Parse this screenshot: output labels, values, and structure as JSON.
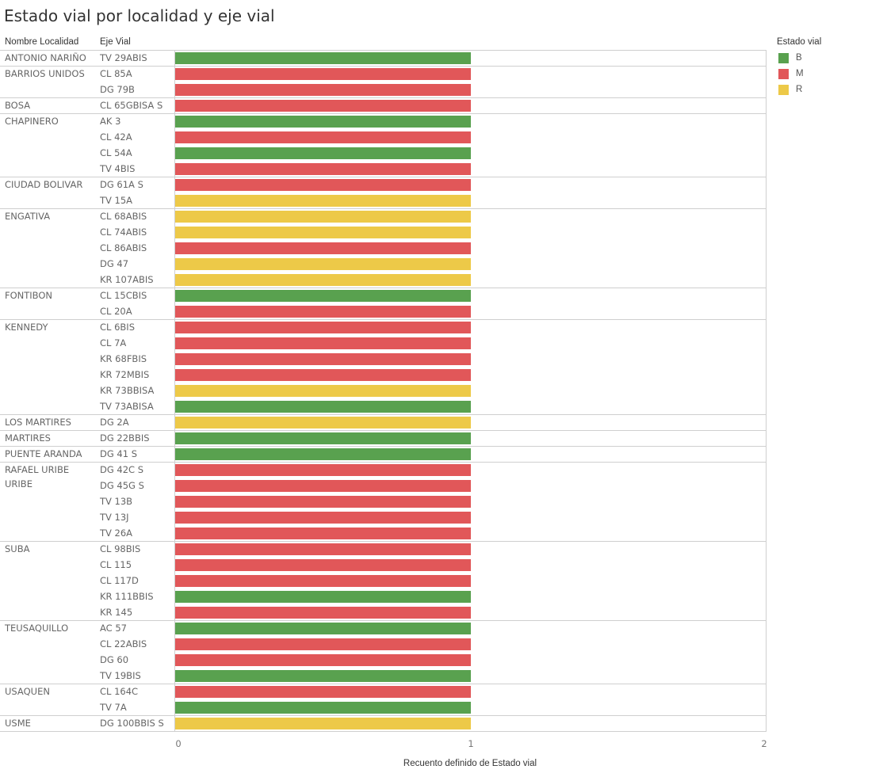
{
  "chart_data": {
    "type": "bar",
    "orientation": "horizontal",
    "title": "Estado vial por localidad y eje vial",
    "row_headers": [
      "Nombre Localidad",
      "Eje Vial"
    ],
    "xlabel": "Recuento definido de Estado vial",
    "xlim": [
      0,
      2
    ],
    "xticks": [
      "0",
      "1",
      "2"
    ],
    "legend": {
      "title": "Estado vial",
      "position": "right",
      "items": [
        {
          "label": "B",
          "color": "#59a14f"
        },
        {
          "label": "M",
          "color": "#e15759"
        },
        {
          "label": "R",
          "color": "#edc948"
        }
      ]
    },
    "groups": [
      {
        "localidad": "ANTONIO NARIÑO",
        "rows": [
          {
            "eje": "TV 29ABIS",
            "estado": "B",
            "value": 1
          }
        ]
      },
      {
        "localidad": "BARRIOS UNIDOS",
        "rows": [
          {
            "eje": "CL 85A",
            "estado": "M",
            "value": 1
          },
          {
            "eje": "DG 79B",
            "estado": "M",
            "value": 1
          }
        ]
      },
      {
        "localidad": "BOSA",
        "rows": [
          {
            "eje": "CL 65GBISA S",
            "estado": "M",
            "value": 1
          }
        ]
      },
      {
        "localidad": "CHAPINERO",
        "rows": [
          {
            "eje": "AK 3",
            "estado": "B",
            "value": 1
          },
          {
            "eje": "CL 42A",
            "estado": "M",
            "value": 1
          },
          {
            "eje": "CL 54A",
            "estado": "B",
            "value": 1
          },
          {
            "eje": "TV 4BIS",
            "estado": "M",
            "value": 1
          }
        ]
      },
      {
        "localidad": "CIUDAD BOLIVAR",
        "rows": [
          {
            "eje": "DG 61A S",
            "estado": "M",
            "value": 1
          },
          {
            "eje": "TV 15A",
            "estado": "R",
            "value": 1
          }
        ]
      },
      {
        "localidad": "ENGATIVA",
        "rows": [
          {
            "eje": "CL 68ABIS",
            "estado": "R",
            "value": 1
          },
          {
            "eje": "CL 74ABIS",
            "estado": "R",
            "value": 1
          },
          {
            "eje": "CL 86ABIS",
            "estado": "M",
            "value": 1
          },
          {
            "eje": "DG 47",
            "estado": "R",
            "value": 1
          },
          {
            "eje": "KR 107ABIS",
            "estado": "R",
            "value": 1
          }
        ]
      },
      {
        "localidad": "FONTIBON",
        "rows": [
          {
            "eje": "CL 15CBIS",
            "estado": "B",
            "value": 1
          },
          {
            "eje": "CL 20A",
            "estado": "M",
            "value": 1
          }
        ]
      },
      {
        "localidad": "KENNEDY",
        "rows": [
          {
            "eje": "CL 6BIS",
            "estado": "M",
            "value": 1
          },
          {
            "eje": "CL 7A",
            "estado": "M",
            "value": 1
          },
          {
            "eje": "KR 68FBIS",
            "estado": "M",
            "value": 1
          },
          {
            "eje": "KR 72MBIS",
            "estado": "M",
            "value": 1
          },
          {
            "eje": "KR 73BBISA",
            "estado": "R",
            "value": 1
          },
          {
            "eje": "TV 73ABISA",
            "estado": "B",
            "value": 1
          }
        ]
      },
      {
        "localidad": "LOS MARTIRES",
        "rows": [
          {
            "eje": "DG 2A",
            "estado": "R",
            "value": 1
          }
        ]
      },
      {
        "localidad": "MARTIRES",
        "rows": [
          {
            "eje": "DG 22BBIS",
            "estado": "B",
            "value": 1
          }
        ]
      },
      {
        "localidad": "PUENTE ARANDA",
        "rows": [
          {
            "eje": "DG 41 S",
            "estado": "B",
            "value": 1
          }
        ]
      },
      {
        "localidad": "RAFAEL URIBE URIBE",
        "localidad_lines": [
          "RAFAEL URIBE",
          "URIBE"
        ],
        "rows": [
          {
            "eje": "DG 42C S",
            "estado": "M",
            "value": 1
          },
          {
            "eje": "DG 45G S",
            "estado": "M",
            "value": 1
          },
          {
            "eje": "TV 13B",
            "estado": "M",
            "value": 1
          },
          {
            "eje": "TV 13J",
            "estado": "M",
            "value": 1
          },
          {
            "eje": "TV 26A",
            "estado": "M",
            "value": 1
          }
        ]
      },
      {
        "localidad": "SUBA",
        "rows": [
          {
            "eje": "CL 98BIS",
            "estado": "M",
            "value": 1
          },
          {
            "eje": "CL 115",
            "estado": "M",
            "value": 1
          },
          {
            "eje": "CL 117D",
            "estado": "M",
            "value": 1
          },
          {
            "eje": "KR 111BBIS",
            "estado": "B",
            "value": 1
          },
          {
            "eje": "KR 145",
            "estado": "M",
            "value": 1
          }
        ]
      },
      {
        "localidad": "TEUSAQUILLO",
        "rows": [
          {
            "eje": "AC 57",
            "estado": "B",
            "value": 1
          },
          {
            "eje": "CL 22ABIS",
            "estado": "M",
            "value": 1
          },
          {
            "eje": "DG 60",
            "estado": "M",
            "value": 1
          },
          {
            "eje": "TV 19BIS",
            "estado": "B",
            "value": 1
          }
        ]
      },
      {
        "localidad": "USAQUEN",
        "rows": [
          {
            "eje": "CL 164C",
            "estado": "M",
            "value": 1
          },
          {
            "eje": "TV 7A",
            "estado": "B",
            "value": 1
          }
        ]
      },
      {
        "localidad": "USME",
        "rows": [
          {
            "eje": "DG 100BBIS S",
            "estado": "R",
            "value": 1
          }
        ]
      }
    ]
  }
}
